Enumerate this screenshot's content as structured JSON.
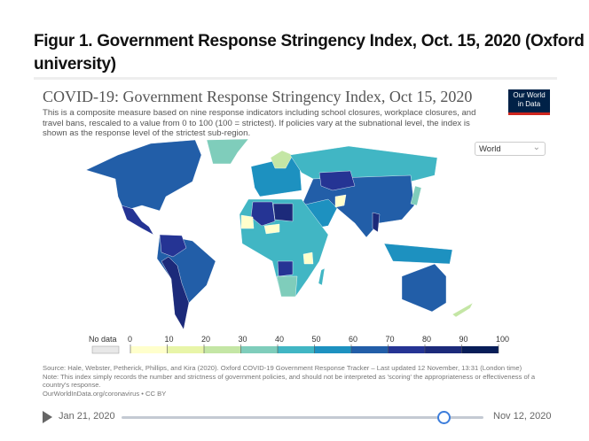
{
  "figure_title": "Figur 1. Government Response Stringency Index, Oct. 15, 2020 (Oxford university)",
  "chart": {
    "title": "COVID-19: Government Response Stringency Index, Oct 15, 2020",
    "subtitle": "This is a composite measure based on nine response indicators including school closures, workplace closures, and travel bans, rescaled to a value from 0 to 100 (100 = strictest). If policies vary at the subnational level, the index is shown as the response level of the strictest sub-region.",
    "logo": "Our World in Data",
    "region_select": "World",
    "legend": {
      "no_data": "No data",
      "ticks": [
        "0",
        "10",
        "20",
        "30",
        "40",
        "50",
        "60",
        "70",
        "80",
        "90",
        "100"
      ],
      "colors": [
        "#ffffcc",
        "#e8f5a8",
        "#c4e6a5",
        "#7fcdbb",
        "#41b6c4",
        "#1d91c0",
        "#225ea8",
        "#253494",
        "#1c2a7a",
        "#081d58"
      ],
      "no_data_color": "#e8e8e8"
    },
    "source": "Source: Hale, Webster, Petherick, Phillips, and Kira (2020). Oxford COVID-19 Government Response Tracker – Last updated 12 November, 13:31 (London time)",
    "note": "Note: This index simply records the number and strictness of government policies, and should not be interpreted as 'scoring' the appropriateness or effectiveness of a country's response.",
    "url": "OurWorldInData.org/coronavirus • CC BY",
    "timeline": {
      "start": "Jan 21, 2020",
      "end": "Nov 12, 2020",
      "position_fraction": 0.89
    }
  }
}
